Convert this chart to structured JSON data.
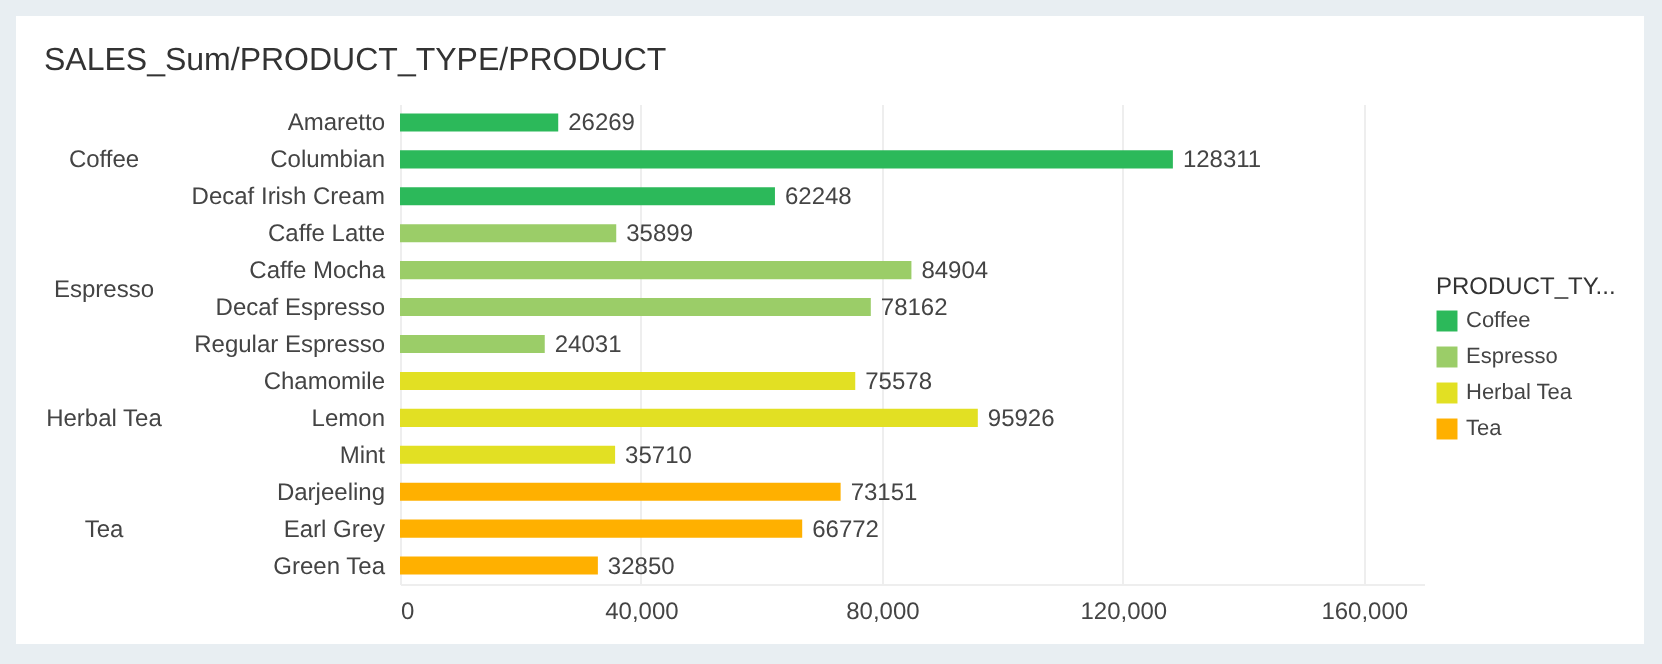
{
  "chart_data": {
    "type": "bar",
    "orientation": "horizontal",
    "title": "SALES_Sum/PRODUCT_TYPE/PRODUCT",
    "legend_title": "PRODUCT_TY...",
    "categories": [
      "Amaretto",
      "Columbian",
      "Decaf Irish Cream",
      "Caffe Latte",
      "Caffe Mocha",
      "Decaf Espresso",
      "Regular Espresso",
      "Chamomile",
      "Lemon",
      "Mint",
      "Darjeeling",
      "Earl Grey",
      "Green Tea"
    ],
    "series": [
      {
        "name": "Coffee",
        "color": "#2cb95a",
        "values": [
          26269,
          128311,
          62248,
          null,
          null,
          null,
          null,
          null,
          null,
          null,
          null,
          null,
          null
        ]
      },
      {
        "name": "Espresso",
        "color": "#9bcd68",
        "values": [
          null,
          null,
          null,
          35899,
          84904,
          78162,
          24031,
          null,
          null,
          null,
          null,
          null,
          null
        ]
      },
      {
        "name": "Herbal Tea",
        "color": "#e2e023",
        "values": [
          null,
          null,
          null,
          null,
          null,
          null,
          null,
          75578,
          95926,
          35710,
          null,
          null,
          null
        ]
      },
      {
        "name": "Tea",
        "color": "#ffb000",
        "values": [
          null,
          null,
          null,
          null,
          null,
          null,
          null,
          null,
          null,
          null,
          73151,
          66772,
          32850
        ]
      }
    ],
    "xlim": [
      0,
      170000
    ],
    "xticks": [
      0,
      {
        "value": 40000,
        "label": "40,000"
      },
      {
        "value": 80000,
        "label": "80,000"
      },
      {
        "value": 120000,
        "label": "120,000"
      },
      {
        "value": 160000,
        "label": "160,000"
      }
    ],
    "grid": "x",
    "legend": "right",
    "data_labels": true
  }
}
